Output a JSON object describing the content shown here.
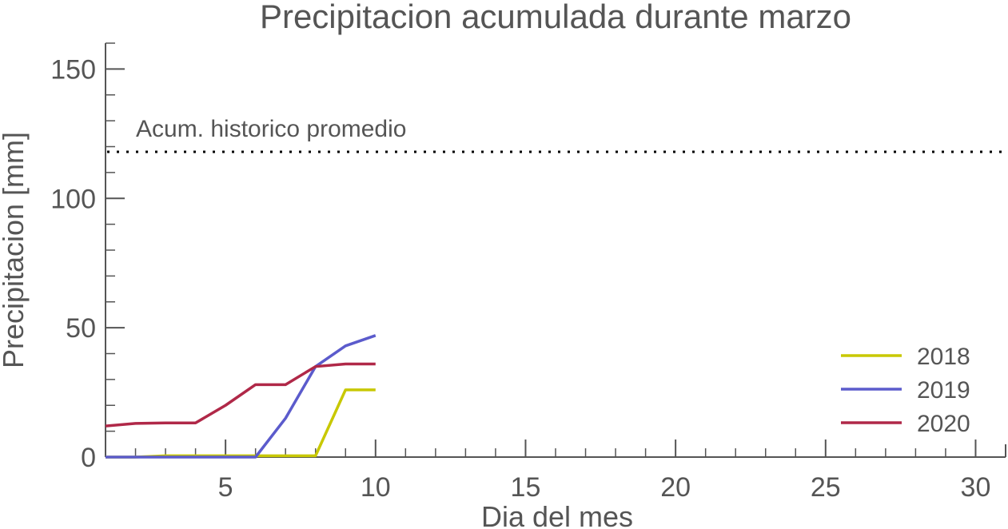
{
  "chart_data": {
    "type": "line",
    "title": "Precipitacion acumulada durante marzo",
    "xlabel": "Dia del mes",
    "ylabel": "Precipitacion [mm]",
    "xlim": [
      1,
      31
    ],
    "ylim": [
      0,
      160
    ],
    "xticks": [
      5,
      10,
      15,
      20,
      25,
      30
    ],
    "yticks": [
      0,
      50,
      100,
      150
    ],
    "legend_position": "bottom-right",
    "reference_line": {
      "label": "Acum. historico promedio",
      "y": 118,
      "style": "dotted",
      "color": "#000000"
    },
    "series": [
      {
        "name": "2018",
        "color": "#c8c800",
        "x": [
          1,
          2,
          3,
          4,
          5,
          6,
          7,
          8,
          9,
          10
        ],
        "y": [
          0,
          0,
          0.5,
          0.5,
          0.5,
          0.5,
          0.5,
          0.5,
          26,
          26
        ]
      },
      {
        "name": "2019",
        "color": "#5b5bcc",
        "x": [
          1,
          2,
          3,
          4,
          5,
          6,
          7,
          8,
          9,
          10
        ],
        "y": [
          0,
          0,
          0,
          0,
          0,
          0,
          15,
          35,
          43,
          47
        ]
      },
      {
        "name": "2020",
        "color": "#b02848",
        "x": [
          1,
          2,
          3,
          4,
          5,
          6,
          7,
          8,
          9,
          10
        ],
        "y": [
          12,
          13,
          13.2,
          13.2,
          20,
          28,
          28,
          35,
          36,
          36
        ]
      }
    ]
  }
}
